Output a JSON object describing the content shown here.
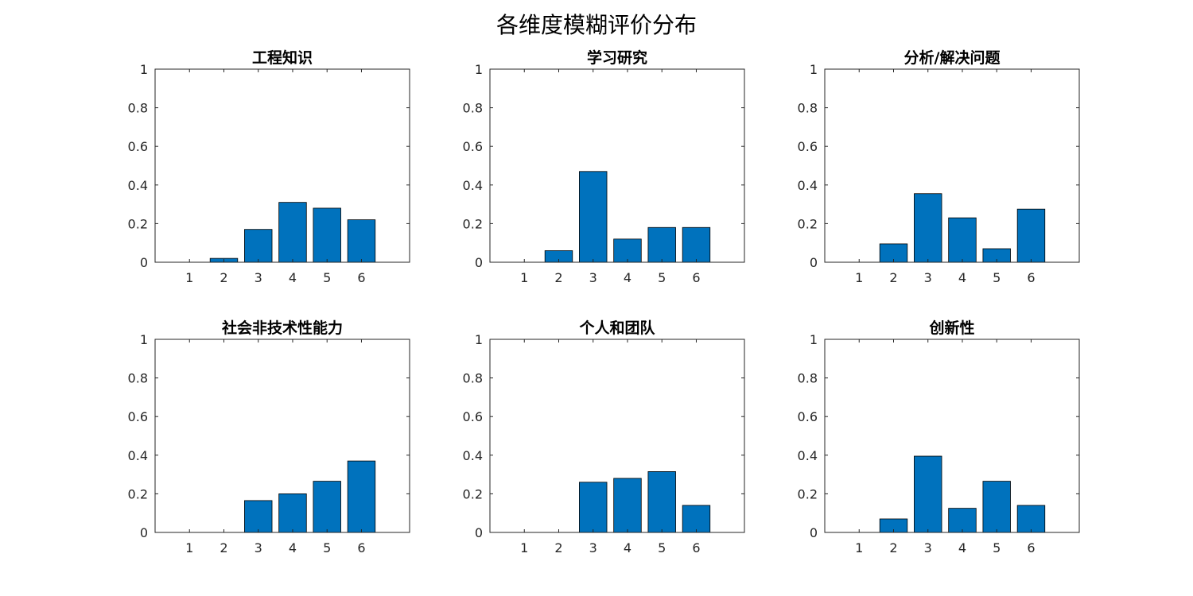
{
  "figure": {
    "title": "各维度模糊评价分布"
  },
  "chart_data": [
    {
      "type": "bar",
      "title": "工程知识",
      "categories": [
        "1",
        "2",
        "3",
        "4",
        "5",
        "6"
      ],
      "values": [
        0.0,
        0.02,
        0.17,
        0.31,
        0.28,
        0.22
      ],
      "ylim": [
        0,
        1
      ],
      "yticks": [
        "0",
        "0.2",
        "0.4",
        "0.6",
        "0.8",
        "1"
      ],
      "grid": false,
      "color": "#0072BD"
    },
    {
      "type": "bar",
      "title": "学习研究",
      "categories": [
        "1",
        "2",
        "3",
        "4",
        "5",
        "6"
      ],
      "values": [
        0.0,
        0.06,
        0.47,
        0.12,
        0.18,
        0.18
      ],
      "ylim": [
        0,
        1
      ],
      "yticks": [
        "0",
        "0.2",
        "0.4",
        "0.6",
        "0.8",
        "1"
      ],
      "grid": false,
      "color": "#0072BD"
    },
    {
      "type": "bar",
      "title": "分析/解决问题",
      "categories": [
        "1",
        "2",
        "3",
        "4",
        "5",
        "6"
      ],
      "values": [
        0.0,
        0.095,
        0.355,
        0.23,
        0.07,
        0.275
      ],
      "ylim": [
        0,
        1
      ],
      "yticks": [
        "0",
        "0.2",
        "0.4",
        "0.6",
        "0.8",
        "1"
      ],
      "grid": false,
      "color": "#0072BD"
    },
    {
      "type": "bar",
      "title": "社会非技术性能力",
      "categories": [
        "1",
        "2",
        "3",
        "4",
        "5",
        "6"
      ],
      "values": [
        0.0,
        0.0,
        0.165,
        0.2,
        0.265,
        0.37
      ],
      "ylim": [
        0,
        1
      ],
      "yticks": [
        "0",
        "0.2",
        "0.4",
        "0.6",
        "0.8",
        "1"
      ],
      "grid": false,
      "color": "#0072BD"
    },
    {
      "type": "bar",
      "title": "个人和团队",
      "categories": [
        "1",
        "2",
        "3",
        "4",
        "5",
        "6"
      ],
      "values": [
        0.0,
        0.0,
        0.26,
        0.28,
        0.315,
        0.14
      ],
      "ylim": [
        0,
        1
      ],
      "yticks": [
        "0",
        "0.2",
        "0.4",
        "0.6",
        "0.8",
        "1"
      ],
      "grid": false,
      "color": "#0072BD"
    },
    {
      "type": "bar",
      "title": "创新性",
      "categories": [
        "1",
        "2",
        "3",
        "4",
        "5",
        "6"
      ],
      "values": [
        0.0,
        0.07,
        0.395,
        0.125,
        0.265,
        0.14
      ],
      "ylim": [
        0,
        1
      ],
      "yticks": [
        "0",
        "0.2",
        "0.4",
        "0.6",
        "0.8",
        "1"
      ],
      "grid": false,
      "color": "#0072BD"
    }
  ]
}
